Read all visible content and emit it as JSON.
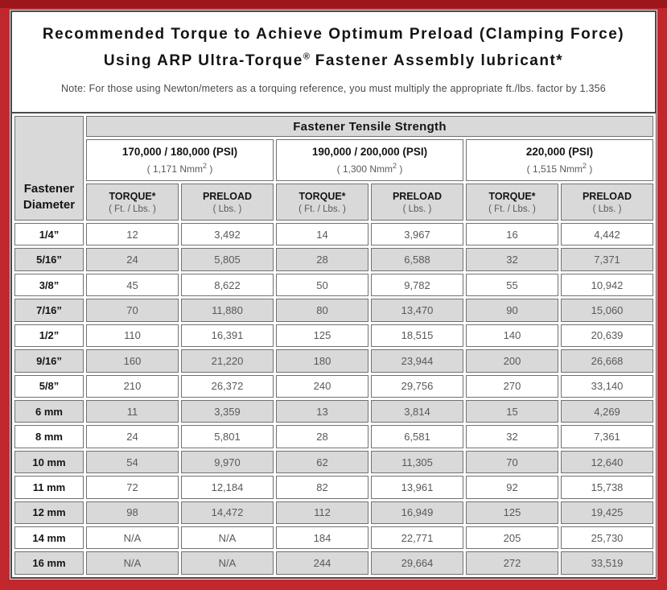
{
  "colors": {
    "border_red": "#c1272d",
    "border_red_dark": "#9c161b",
    "header_grey": "#d9d9d9",
    "cell_border": "#717171",
    "value_text": "#595959",
    "panel_border": "#4b4b4b",
    "heading_text": "#141414"
  },
  "title": {
    "line1": "Recommended Torque to Achieve Optimum Preload (Clamping Force)",
    "line2_prefix": "Using ARP Ultra-Torque",
    "line2_sup": "®",
    "line2_suffix": " Fastener Assembly lubricant*",
    "note": "Note: For those using Newton/meters as a torquing reference, you must multiply the appropriate ft./lbs. factor by 1.356"
  },
  "table": {
    "corner_line1": "Fastener",
    "corner_line2": "Diameter",
    "main_header": "Fastener Tensile Strength",
    "groups": [
      {
        "psi": "170,000 / 180,000 (PSI)",
        "nmm_prefix": "( 1,171 Nmm",
        "nmm_sup": "2",
        "nmm_suffix": " )"
      },
      {
        "psi": "190,000 / 200,000 (PSI)",
        "nmm_prefix": "( 1,300 Nmm",
        "nmm_sup": "2",
        "nmm_suffix": " )"
      },
      {
        "psi": "220,000 (PSI)",
        "nmm_prefix": "( 1,515 Nmm",
        "nmm_sup": "2",
        "nmm_suffix": " )"
      }
    ],
    "col_headers": {
      "torque_label": "TORQUE*",
      "torque_unit": "( Ft. / Lbs. )",
      "preload_label": "PRELOAD",
      "preload_unit": "( Lbs. )"
    },
    "rows": [
      {
        "diameter": "1/4”",
        "values": [
          "12",
          "3,492",
          "14",
          "3,967",
          "16",
          "4,442"
        ]
      },
      {
        "diameter": "5/16”",
        "values": [
          "24",
          "5,805",
          "28",
          "6,588",
          "32",
          "7,371"
        ]
      },
      {
        "diameter": "3/8”",
        "values": [
          "45",
          "8,622",
          "50",
          "9,782",
          "55",
          "10,942"
        ]
      },
      {
        "diameter": "7/16”",
        "values": [
          "70",
          "11,880",
          "80",
          "13,470",
          "90",
          "15,060"
        ]
      },
      {
        "diameter": "1/2”",
        "values": [
          "110",
          "16,391",
          "125",
          "18,515",
          "140",
          "20,639"
        ]
      },
      {
        "diameter": "9/16”",
        "values": [
          "160",
          "21,220",
          "180",
          "23,944",
          "200",
          "26,668"
        ]
      },
      {
        "diameter": "5/8”",
        "values": [
          "210",
          "26,372",
          "240",
          "29,756",
          "270",
          "33,140"
        ]
      },
      {
        "diameter": "6 mm",
        "values": [
          "11",
          "3,359",
          "13",
          "3,814",
          "15",
          "4,269"
        ]
      },
      {
        "diameter": "8 mm",
        "values": [
          "24",
          "5,801",
          "28",
          "6,581",
          "32",
          "7,361"
        ]
      },
      {
        "diameter": "10 mm",
        "values": [
          "54",
          "9,970",
          "62",
          "11,305",
          "70",
          "12,640"
        ]
      },
      {
        "diameter": "11 mm",
        "values": [
          "72",
          "12,184",
          "82",
          "13,961",
          "92",
          "15,738"
        ]
      },
      {
        "diameter": "12 mm",
        "values": [
          "98",
          "14,472",
          "112",
          "16,949",
          "125",
          "19,425"
        ]
      },
      {
        "diameter": "14 mm",
        "values": [
          "N/A",
          "N/A",
          "184",
          "22,771",
          "205",
          "25,730"
        ]
      },
      {
        "diameter": "16 mm",
        "values": [
          "N/A",
          "N/A",
          "244",
          "29,664",
          "272",
          "33,519"
        ]
      }
    ]
  }
}
